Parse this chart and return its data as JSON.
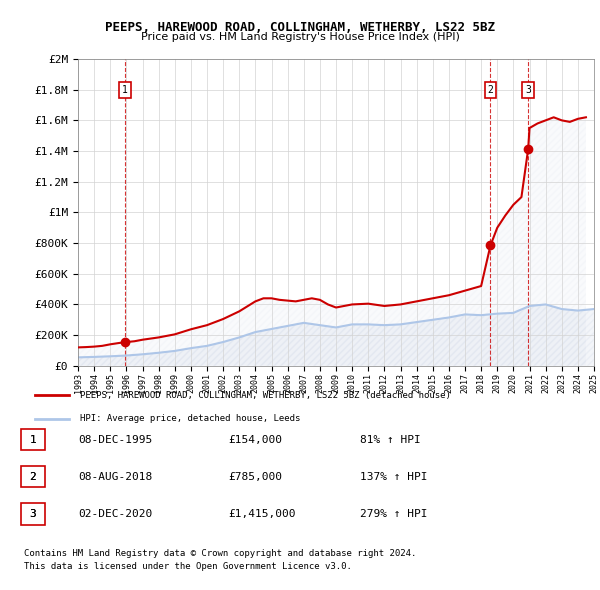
{
  "title": "PEEPS, HAREWOOD ROAD, COLLINGHAM, WETHERBY, LS22 5BZ",
  "subtitle": "Price paid vs. HM Land Registry's House Price Index (HPI)",
  "legend_line1": "PEEPS, HAREWOOD ROAD, COLLINGHAM, WETHERBY, LS22 5BZ (detached house)",
  "legend_line2": "HPI: Average price, detached house, Leeds",
  "footer1": "Contains HM Land Registry data © Crown copyright and database right 2024.",
  "footer2": "This data is licensed under the Open Government Licence v3.0.",
  "transactions": [
    {
      "num": 1,
      "date": "08-DEC-1995",
      "price": 154000,
      "pct": "81%",
      "x": 1995.92
    },
    {
      "num": 2,
      "date": "08-AUG-2018",
      "price": 785000,
      "pct": "137%",
      "x": 2018.58
    },
    {
      "num": 3,
      "date": "02-DEC-2020",
      "price": 1415000,
      "pct": "279%",
      "x": 2020.92
    }
  ],
  "hpi_color": "#aec6e8",
  "price_color": "#cc0000",
  "dashed_color": "#cc0000",
  "hatch_color": "#d0d8e8",
  "ylim": [
    0,
    2000000
  ],
  "xlim_start": 1993,
  "xlim_end": 2025,
  "hpi_data_x": [
    1993,
    1994,
    1995,
    1996,
    1997,
    1998,
    1999,
    2000,
    2001,
    2002,
    2003,
    2004,
    2005,
    2006,
    2007,
    2008,
    2009,
    2010,
    2011,
    2012,
    2013,
    2014,
    2015,
    2016,
    2017,
    2018,
    2019,
    2020,
    2021,
    2022,
    2023,
    2024,
    2025
  ],
  "hpi_data_y": [
    55000,
    58000,
    62000,
    67000,
    75000,
    85000,
    97000,
    115000,
    130000,
    155000,
    185000,
    220000,
    240000,
    260000,
    280000,
    265000,
    250000,
    270000,
    270000,
    265000,
    270000,
    285000,
    300000,
    315000,
    335000,
    330000,
    340000,
    345000,
    390000,
    400000,
    370000,
    360000,
    370000
  ],
  "price_data_x": [
    1993.0,
    1993.5,
    1994.0,
    1994.5,
    1995.0,
    1995.5,
    1995.92,
    1996.5,
    1997.0,
    1998.0,
    1999.0,
    2000.0,
    2001.0,
    2002.0,
    2003.0,
    2004.0,
    2004.5,
    2005.0,
    2005.5,
    2006.0,
    2006.5,
    2007.0,
    2007.5,
    2008.0,
    2008.5,
    2009.0,
    2010.0,
    2011.0,
    2012.0,
    2013.0,
    2014.0,
    2015.0,
    2016.0,
    2017.0,
    2018.0,
    2018.58,
    2019.0,
    2019.5,
    2020.0,
    2020.5,
    2020.92,
    2021.0,
    2021.5,
    2022.0,
    2022.5,
    2023.0,
    2023.5,
    2024.0,
    2024.5
  ],
  "price_data_y": [
    120000,
    122000,
    125000,
    130000,
    140000,
    148000,
    154000,
    160000,
    170000,
    185000,
    205000,
    238000,
    265000,
    305000,
    355000,
    420000,
    440000,
    440000,
    430000,
    425000,
    420000,
    430000,
    440000,
    430000,
    400000,
    380000,
    400000,
    405000,
    390000,
    400000,
    420000,
    440000,
    460000,
    490000,
    520000,
    785000,
    900000,
    980000,
    1050000,
    1100000,
    1415000,
    1550000,
    1580000,
    1600000,
    1620000,
    1600000,
    1590000,
    1610000,
    1620000
  ]
}
